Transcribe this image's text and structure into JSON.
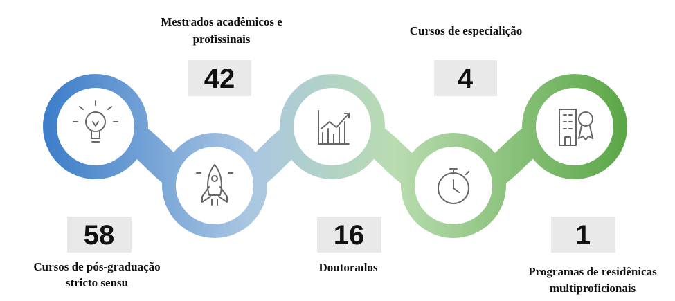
{
  "items": [
    {
      "number": "58",
      "label_lines": [
        "Cursos de pós-graduação",
        "stricto sensu"
      ]
    },
    {
      "number": "42",
      "label_lines": [
        "Mestrados acadêmicos e",
        "profissinais"
      ]
    },
    {
      "number": "16",
      "label_lines": [
        "Doutorados"
      ]
    },
    {
      "number": "4",
      "label_lines": [
        "Cursos de especialição"
      ]
    },
    {
      "number": "1",
      "label_lines": [
        "Programas de residênicas",
        "multiproficionais"
      ]
    }
  ]
}
